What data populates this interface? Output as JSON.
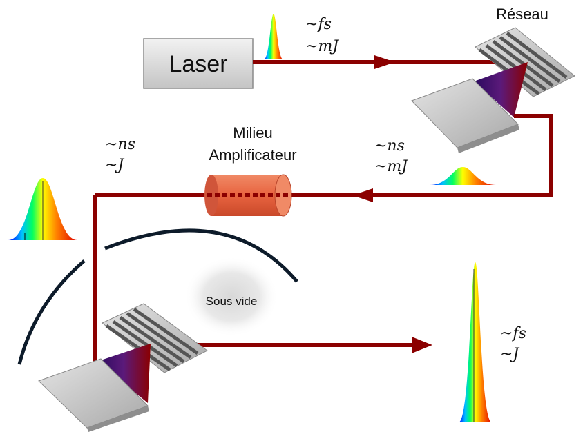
{
  "labels": {
    "laser": "Laser",
    "grating": "Réseau",
    "amplifier_line1": "Milieu",
    "amplifier_line2": "Amplificateur",
    "vacuum": "Sous vide"
  },
  "pulse_specs": {
    "input": {
      "duration": "~fs",
      "energy": "~mJ"
    },
    "stretched": {
      "duration": "~ns",
      "energy": "~mJ"
    },
    "amplified": {
      "duration": "~ns",
      "energy": "~J"
    },
    "compressed": {
      "duration": "~fs",
      "energy": "~J"
    }
  },
  "colors": {
    "beam": "#8b0000",
    "amplifier": "#e8633f",
    "grating_plate": "#c8c8c8",
    "grating_lines": "#555555",
    "vacuum_chamber": "#0d1b2a",
    "laser_box": "#d6d6d6"
  }
}
